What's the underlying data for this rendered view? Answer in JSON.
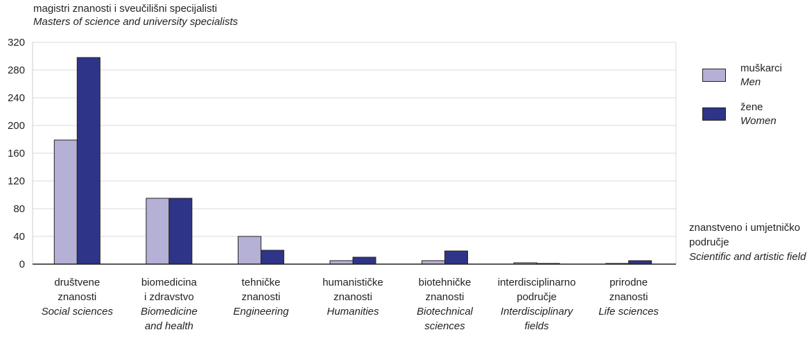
{
  "chart_data": {
    "type": "bar",
    "title": "magistri znanosti i sveučilišni specijalisti",
    "subtitle": "Masters of science and university specialists",
    "xlabel": "znanstveno i umjetničko područje",
    "xlabel_en": "Scientific and artistic field",
    "ylim": [
      0,
      320
    ],
    "yticks": [
      "0",
      "40",
      "80",
      "120",
      "160",
      "200",
      "240",
      "280",
      "320"
    ],
    "grid": true,
    "legend_position": "right",
    "categories": [
      {
        "hr": [
          "društvene",
          "znanosti"
        ],
        "en": [
          "Social sciences"
        ]
      },
      {
        "hr": [
          "biomedicina",
          "i zdravstvo"
        ],
        "en": [
          "Biomedicine",
          "and health"
        ]
      },
      {
        "hr": [
          "tehničke",
          "znanosti"
        ],
        "en": [
          "Engineering"
        ]
      },
      {
        "hr": [
          "humanističke",
          "znanosti"
        ],
        "en": [
          "Humanities"
        ]
      },
      {
        "hr": [
          "biotehničke",
          "znanosti"
        ],
        "en": [
          "Biotechnical",
          "sciences"
        ]
      },
      {
        "hr": [
          "interdisciplinarno",
          "područje"
        ],
        "en": [
          "Interdisciplinary",
          "fields"
        ]
      },
      {
        "hr": [
          "prirodne",
          "znanosti"
        ],
        "en": [
          "Life sciences"
        ]
      }
    ],
    "series": [
      {
        "name": "muškarci",
        "name_en": "Men",
        "color": "#b4b0d6",
        "values": [
          179,
          95,
          40,
          5,
          5,
          2,
          1
        ]
      },
      {
        "name": "žene",
        "name_en": "Women",
        "color": "#2e3588",
        "values": [
          298,
          95,
          20,
          10,
          19,
          1,
          5
        ]
      }
    ]
  }
}
